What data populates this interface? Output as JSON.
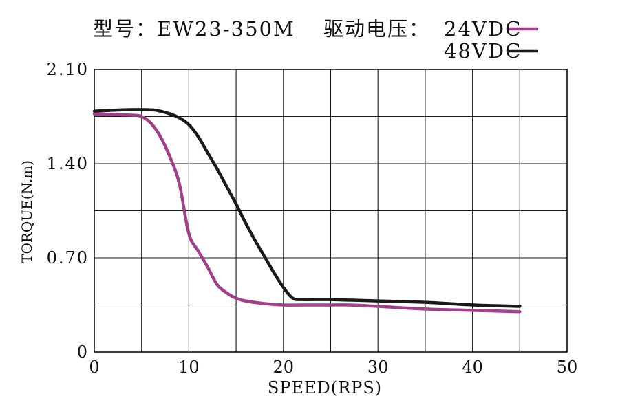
{
  "chart_data": {
    "type": "line",
    "title": "型号：EW23-350M",
    "legend_title": "驱动电压：",
    "xlabel": "SPEED(RPS)",
    "ylabel": "TORQUE(N.m)",
    "xlim": [
      0,
      50
    ],
    "ylim": [
      0,
      2.1
    ],
    "x_ticks": [
      0,
      10,
      20,
      30,
      40,
      50
    ],
    "x_tick_labels": [
      "0",
      "10",
      "20",
      "30",
      "40",
      "50"
    ],
    "y_ticks": [
      0,
      0.7,
      1.4,
      2.1
    ],
    "y_tick_labels": [
      "0",
      "0.70",
      "1.40",
      "2.10"
    ],
    "grid": true,
    "legend_position": "top-right",
    "series": [
      {
        "name": "24VDC",
        "color": "#a0408a",
        "x": [
          0,
          2,
          4,
          5,
          6,
          7,
          8,
          9,
          10,
          11,
          12,
          13,
          14,
          15,
          16,
          18,
          20,
          22,
          25,
          27,
          30,
          35,
          40,
          45
        ],
        "y": [
          1.77,
          1.765,
          1.76,
          1.75,
          1.7,
          1.6,
          1.45,
          1.25,
          0.88,
          0.75,
          0.63,
          0.5,
          0.44,
          0.4,
          0.38,
          0.36,
          0.35,
          0.35,
          0.35,
          0.35,
          0.34,
          0.32,
          0.31,
          0.3
        ]
      },
      {
        "name": "48VDC",
        "color": "#1a1a1a",
        "x": [
          0,
          3,
          6,
          7,
          8,
          9,
          10,
          11,
          12,
          13,
          14,
          15,
          16,
          17,
          18,
          19,
          20,
          21,
          22,
          25,
          30,
          35,
          40,
          45
        ],
        "y": [
          1.79,
          1.8,
          1.8,
          1.79,
          1.77,
          1.74,
          1.69,
          1.6,
          1.48,
          1.36,
          1.23,
          1.1,
          0.96,
          0.83,
          0.71,
          0.59,
          0.48,
          0.4,
          0.39,
          0.39,
          0.38,
          0.37,
          0.35,
          0.34
        ]
      }
    ]
  }
}
